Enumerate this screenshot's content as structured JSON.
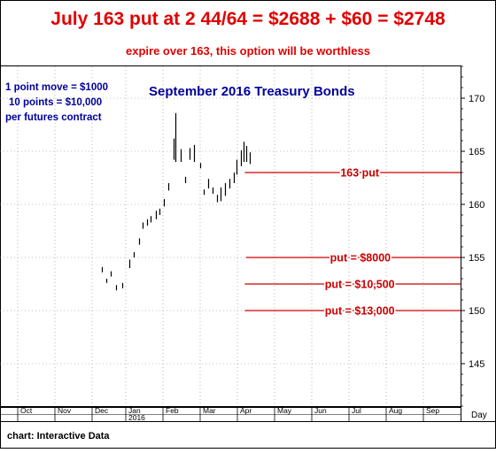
{
  "headline": "July 163 put at 2 44/64 = $2688 + $60 = $2748",
  "subheadline": "expire over 163, this option will be worthless",
  "notes": [
    "1 point move = $1000",
    "10 points = $10,000",
    "per futures contract"
  ],
  "credit": "chart: Interactive Data",
  "colors": {
    "headline": "#e00000",
    "notes": "#000099",
    "put_lines": "#cc0000",
    "bars": "#000000",
    "grid": "#888888"
  },
  "chart_data": {
    "type": "bar",
    "title": "September 2016 Treasury Bonds",
    "x_axis": {
      "months": [
        "Oct",
        "Nov",
        "Dec",
        "Jan",
        "Feb",
        "Mar",
        "Apr",
        "May",
        "Jun",
        "Jul",
        "Aug",
        "Sep"
      ],
      "year_label": "2016",
      "period_label": "Day"
    },
    "y_axis": {
      "ticks": [
        145,
        150,
        155,
        160,
        165,
        170
      ],
      "range": [
        141,
        173
      ],
      "side": "right"
    },
    "grid": true,
    "bars": [
      {
        "x": "2015-12-10",
        "low": 153.6,
        "high": 154.1
      },
      {
        "x": "2015-12-14",
        "low": 152.6,
        "high": 153.0
      },
      {
        "x": "2015-12-18",
        "low": 153.2,
        "high": 153.7
      },
      {
        "x": "2015-12-23",
        "low": 151.9,
        "high": 152.4
      },
      {
        "x": "2015-12-29",
        "low": 152.1,
        "high": 152.6
      },
      {
        "x": "2016-01-04",
        "low": 154.0,
        "high": 154.8
      },
      {
        "x": "2016-01-08",
        "low": 155.0,
        "high": 155.5
      },
      {
        "x": "2016-01-12",
        "low": 156.2,
        "high": 156.8
      },
      {
        "x": "2016-01-15",
        "low": 157.7,
        "high": 158.3
      },
      {
        "x": "2016-01-19",
        "low": 158.0,
        "high": 158.6
      },
      {
        "x": "2016-01-22",
        "low": 158.3,
        "high": 158.9
      },
      {
        "x": "2016-01-26",
        "low": 158.6,
        "high": 159.4
      },
      {
        "x": "2016-01-29",
        "low": 159.0,
        "high": 159.6
      },
      {
        "x": "2016-02-02",
        "low": 159.8,
        "high": 160.5
      },
      {
        "x": "2016-02-05",
        "low": 161.3,
        "high": 162.0
      },
      {
        "x": "2016-02-09",
        "low": 164.2,
        "high": 166.2
      },
      {
        "x": "2016-02-11",
        "low": 164.0,
        "high": 168.6
      },
      {
        "x": "2016-02-15",
        "low": 164.0,
        "high": 165.2
      },
      {
        "x": "2016-02-18",
        "low": 162.0,
        "high": 162.6
      },
      {
        "x": "2016-02-22",
        "low": 164.2,
        "high": 165.3
      },
      {
        "x": "2016-02-25",
        "low": 164.0,
        "high": 165.6
      },
      {
        "x": "2016-03-01",
        "low": 163.4,
        "high": 163.9
      },
      {
        "x": "2016-03-04",
        "low": 160.9,
        "high": 161.4
      },
      {
        "x": "2016-03-08",
        "low": 161.5,
        "high": 162.4
      },
      {
        "x": "2016-03-11",
        "low": 161.0,
        "high": 161.6
      },
      {
        "x": "2016-03-15",
        "low": 160.2,
        "high": 160.9
      },
      {
        "x": "2016-03-18",
        "low": 160.3,
        "high": 161.6
      },
      {
        "x": "2016-03-22",
        "low": 160.8,
        "high": 162.0
      },
      {
        "x": "2016-03-25",
        "low": 161.5,
        "high": 162.4
      },
      {
        "x": "2016-03-29",
        "low": 162.0,
        "high": 163.0
      },
      {
        "x": "2016-03-31",
        "low": 162.8,
        "high": 164.2
      },
      {
        "x": "2016-04-04",
        "low": 163.6,
        "high": 165.1
      },
      {
        "x": "2016-04-06",
        "low": 164.0,
        "high": 165.9
      },
      {
        "x": "2016-04-08",
        "low": 164.0,
        "high": 165.5
      },
      {
        "x": "2016-04-11",
        "low": 163.8,
        "high": 164.9
      }
    ],
    "annotations": [
      {
        "label": "163 put",
        "price": 163,
        "from": "2016-04-07"
      },
      {
        "label": "put = $8000",
        "price": 155,
        "from": "2016-04-08"
      },
      {
        "label": "put = $10,500",
        "price": 152.5,
        "from": "2016-04-07"
      },
      {
        "label": "put = $13,000",
        "price": 150,
        "from": "2016-04-07"
      }
    ]
  }
}
